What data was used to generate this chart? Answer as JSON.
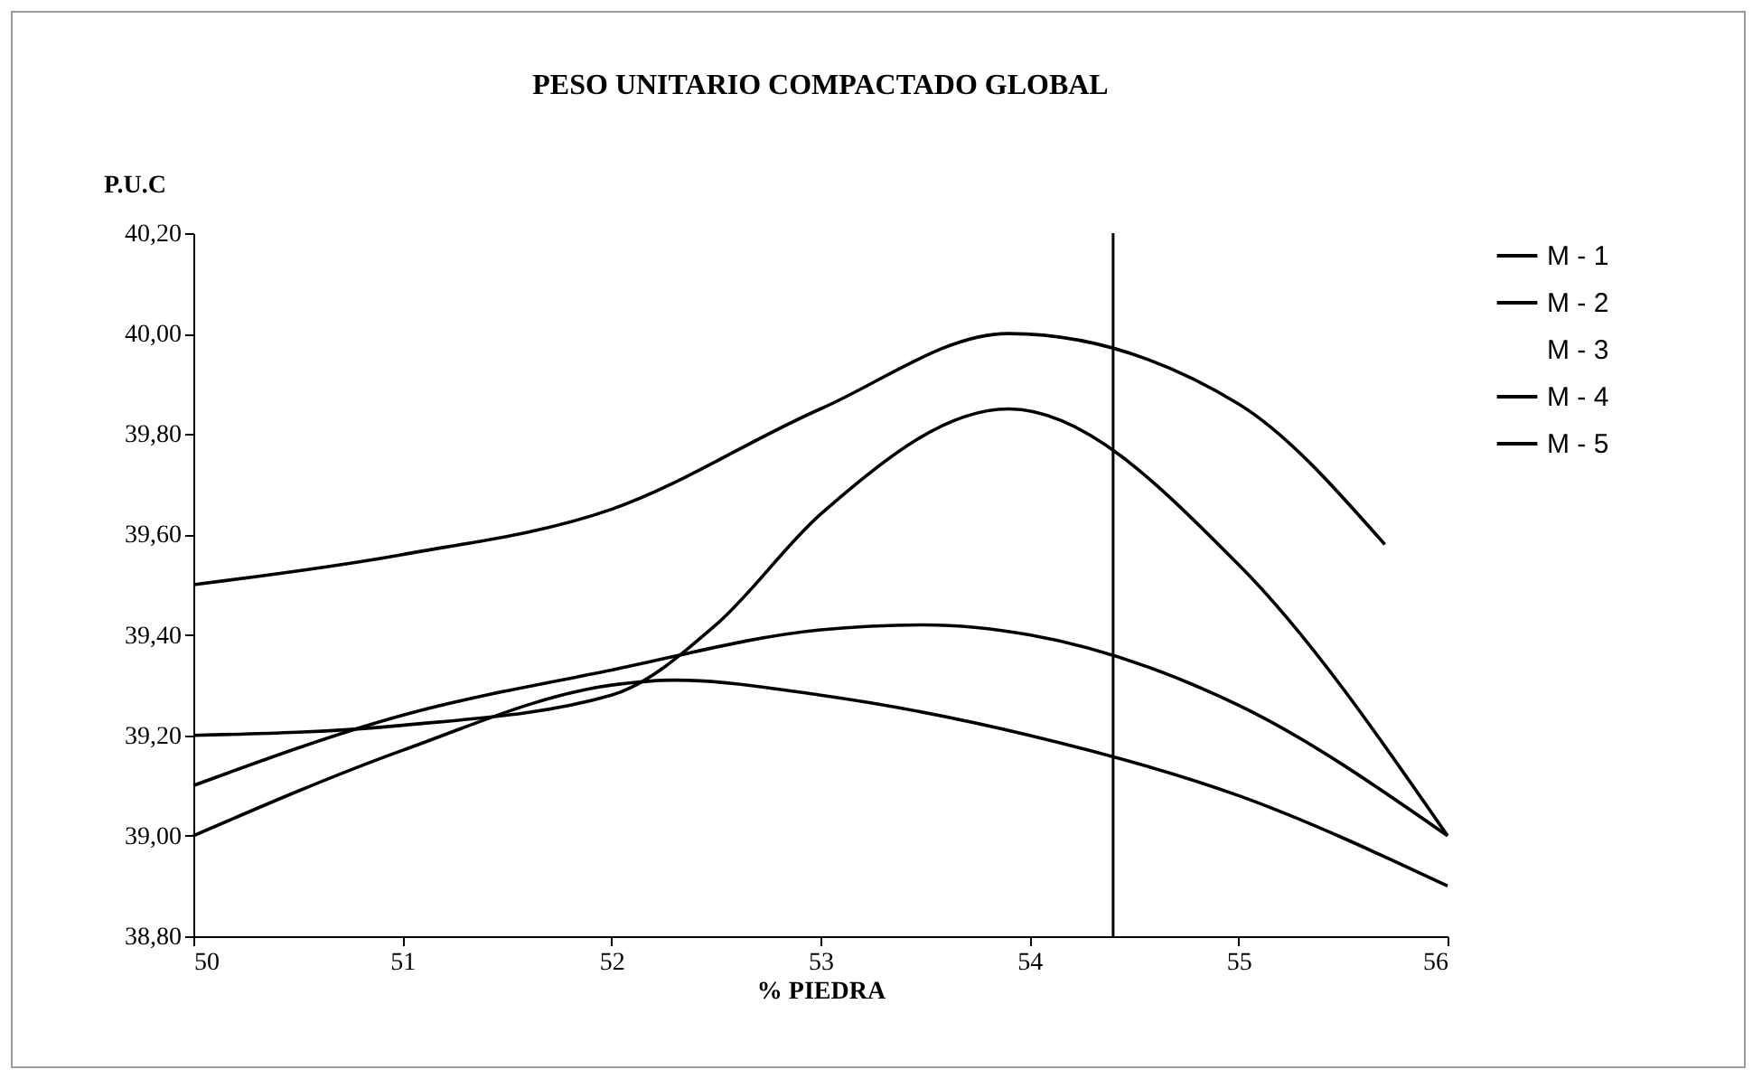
{
  "chart_data": {
    "type": "line",
    "title": "PESO UNITARIO COMPACTADO GLOBAL",
    "xlabel": "% PIEDRA",
    "ylabel": "P.U.C",
    "xlim": [
      50,
      56
    ],
    "xticks": [
      50,
      51,
      52,
      53,
      54,
      55,
      56
    ],
    "ylim": [
      38.8,
      40.2
    ],
    "yticks": [
      {
        "value": 38.8,
        "label": "38,80"
      },
      {
        "value": 39.0,
        "label": "39,00"
      },
      {
        "value": 39.2,
        "label": "39,20"
      },
      {
        "value": 39.4,
        "label": "39,40"
      },
      {
        "value": 39.6,
        "label": "39,60"
      },
      {
        "value": 39.8,
        "label": "39,80"
      },
      {
        "value": 40.0,
        "label": "40,00"
      },
      {
        "value": 40.2,
        "label": "40,20"
      }
    ],
    "grid": false,
    "legend": "right",
    "marker": "none",
    "line_style": "solid",
    "ref_lines": [
      {
        "axis": "x",
        "value": 54.4,
        "color": "#000000"
      }
    ],
    "series": [
      {
        "name": "M - 1",
        "color": "#000000",
        "x": [
          50,
          51,
          52,
          53,
          53.9,
          55,
          55.7
        ],
        "values": [
          39.5,
          39.56,
          39.65,
          39.85,
          40.0,
          39.86,
          39.58
        ]
      },
      {
        "name": "M - 2",
        "color": "#000000",
        "x": [
          50,
          51,
          52,
          53,
          53.5,
          54,
          55,
          56
        ],
        "values": [
          39.1,
          39.24,
          39.33,
          39.41,
          39.42,
          39.4,
          39.26,
          39.0
        ]
      },
      {
        "name": "M - 3"
      },
      {
        "name": "M - 4",
        "color": "#000000",
        "x": [
          50,
          51,
          52,
          52.5,
          53,
          53.9,
          55,
          56
        ],
        "values": [
          39.2,
          39.22,
          39.28,
          39.42,
          39.64,
          39.85,
          39.54,
          39.0
        ]
      },
      {
        "name": "M - 5",
        "color": "#000000",
        "x": [
          50,
          51,
          52,
          52.3,
          53,
          54,
          55,
          56
        ],
        "values": [
          39.0,
          39.17,
          39.3,
          39.31,
          39.28,
          39.2,
          39.08,
          38.9
        ]
      }
    ]
  }
}
